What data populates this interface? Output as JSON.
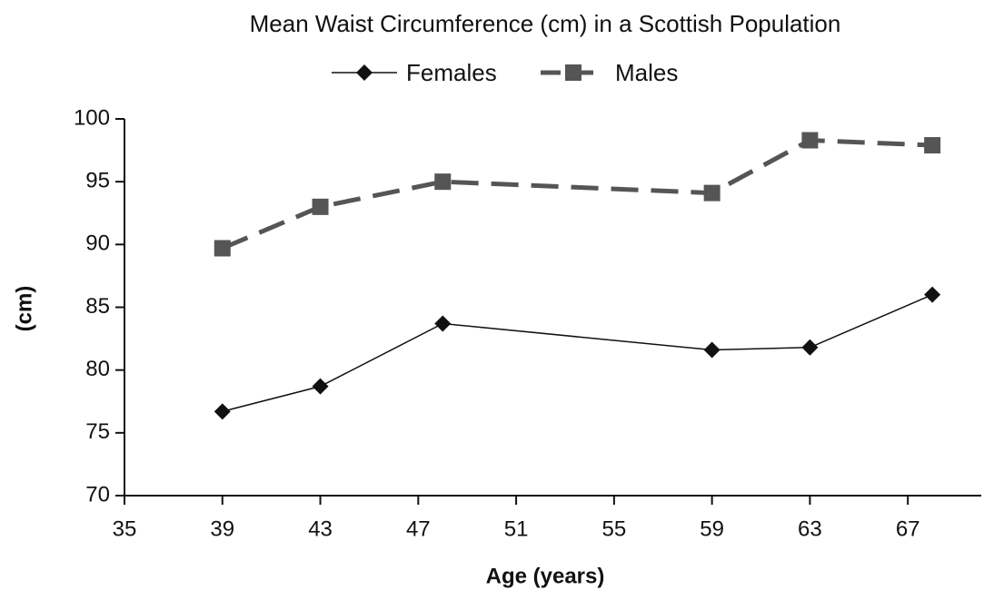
{
  "chart_data": {
    "type": "line",
    "title": "Mean Waist Circumference (cm) in a Scottish Population",
    "xlabel": "Age (years)",
    "ylabel": "(cm)",
    "x": [
      39,
      43,
      48,
      59,
      63,
      68
    ],
    "series": [
      {
        "name": "Females",
        "color": "#111111",
        "marker": "diamond",
        "dashed": false,
        "values": [
          76.7,
          78.7,
          83.7,
          81.6,
          81.8,
          86.0
        ]
      },
      {
        "name": "Males",
        "color": "#555555",
        "marker": "square",
        "dashed": true,
        "values": [
          89.7,
          93.0,
          95.0,
          94.1,
          98.3,
          97.9
        ]
      }
    ],
    "xlim": [
      35,
      70
    ],
    "xticks": [
      35,
      39,
      43,
      47,
      51,
      55,
      59,
      63,
      67
    ],
    "ylim": [
      70,
      100
    ],
    "yticks": [
      70,
      75,
      80,
      85,
      90,
      95,
      100
    ],
    "grid": false,
    "legend": "top"
  }
}
